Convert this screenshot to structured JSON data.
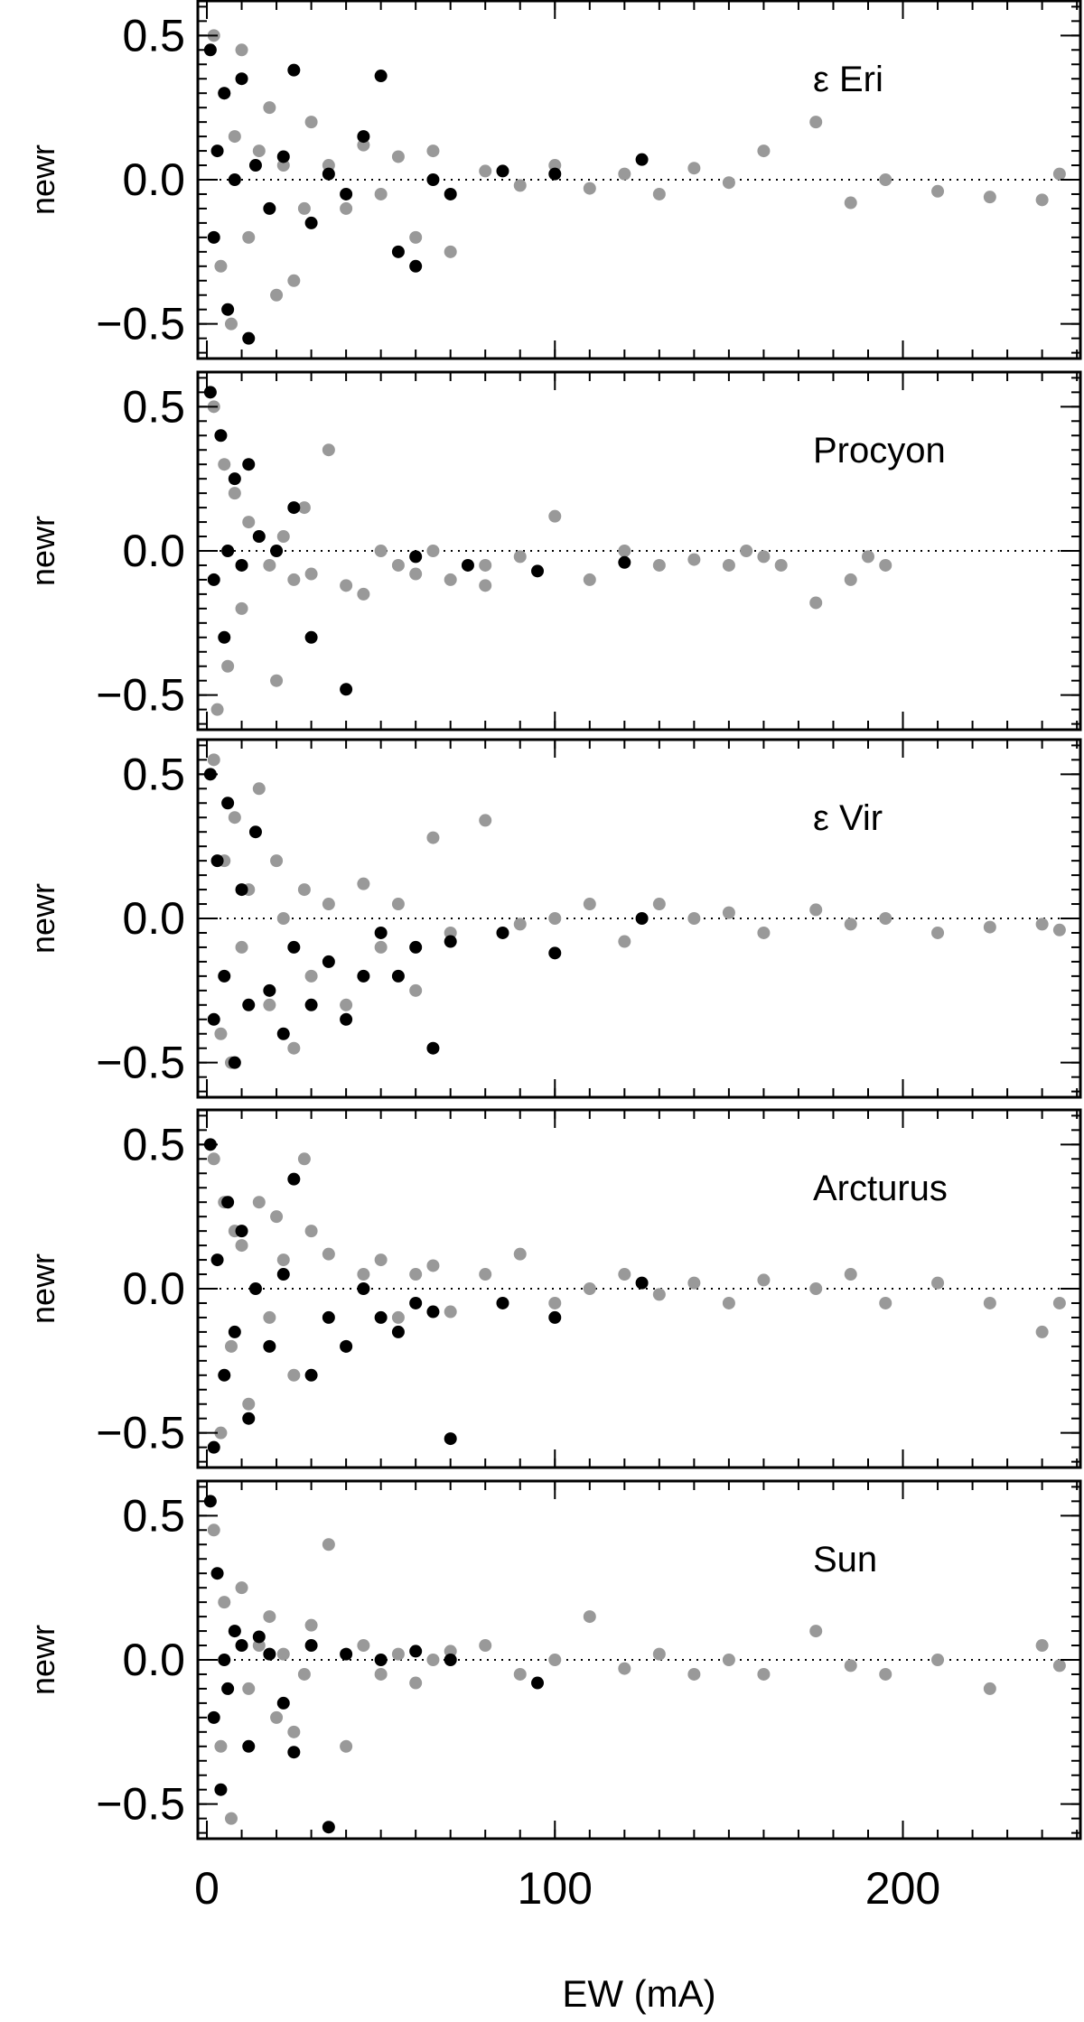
{
  "chart_data": [
    {
      "type": "scatter",
      "annotation": "ε Eri",
      "ylabel": "newr",
      "xlim": [
        -2.6,
        251
      ],
      "ylim": [
        -0.62,
        0.62
      ],
      "yticks": [
        {
          "value": -0.5,
          "label": "−0.5"
        },
        {
          "value": 0,
          "label": "0.0"
        },
        {
          "value": 0.5,
          "label": "0.5"
        }
      ],
      "minor_xtick_step": 10,
      "minor_ytick_step": 0.05,
      "hline": 0,
      "series": [
        {
          "color": "#999999",
          "x": [
            2,
            4,
            5,
            7,
            8,
            10,
            12,
            15,
            18,
            20,
            22,
            25,
            28,
            30,
            35,
            40,
            45,
            50,
            55,
            60,
            65,
            70,
            80,
            90,
            100,
            110,
            120,
            130,
            140,
            150,
            160,
            175,
            185,
            195,
            210,
            225,
            240,
            245
          ],
          "values": [
            0.5,
            -0.3,
            0.3,
            -0.5,
            0.15,
            0.45,
            -0.2,
            0.1,
            0.25,
            -0.4,
            0.05,
            -0.35,
            -0.1,
            0.2,
            0.05,
            -0.1,
            0.12,
            -0.05,
            0.08,
            -0.2,
            0.1,
            -0.25,
            0.03,
            -0.02,
            0.05,
            -0.03,
            0.02,
            -0.05,
            0.04,
            -0.01,
            0.1,
            0.2,
            -0.08,
            0.0,
            -0.04,
            -0.06,
            -0.07,
            0.02
          ]
        },
        {
          "color": "#000000",
          "x": [
            1,
            2,
            3,
            5,
            6,
            8,
            10,
            12,
            14,
            18,
            22,
            25,
            30,
            35,
            40,
            45,
            50,
            55,
            60,
            65,
            70,
            85,
            100,
            125
          ],
          "values": [
            0.45,
            -0.2,
            0.1,
            0.3,
            -0.45,
            0.0,
            0.35,
            -0.55,
            0.05,
            -0.1,
            0.08,
            0.38,
            -0.15,
            0.02,
            -0.05,
            0.15,
            0.36,
            -0.25,
            -0.3,
            0.0,
            -0.05,
            0.03,
            0.02,
            0.07
          ]
        }
      ]
    },
    {
      "type": "scatter",
      "annotation": "Procyon",
      "ylabel": "newr",
      "xlim": [
        -2.6,
        251
      ],
      "ylim": [
        -0.62,
        0.62
      ],
      "yticks": [
        {
          "value": -0.5,
          "label": "−0.5"
        },
        {
          "value": 0,
          "label": "0.0"
        },
        {
          "value": 0.5,
          "label": "0.5"
        }
      ],
      "minor_xtick_step": 10,
      "minor_ytick_step": 0.05,
      "hline": 0,
      "series": [
        {
          "color": "#999999",
          "x": [
            2,
            3,
            5,
            6,
            8,
            10,
            12,
            15,
            18,
            20,
            22,
            25,
            28,
            30,
            35,
            40,
            45,
            50,
            55,
            60,
            65,
            70,
            80,
            90,
            100,
            110,
            120,
            130,
            140,
            150,
            155,
            160,
            165,
            175,
            185,
            190,
            195,
            80
          ],
          "values": [
            0.5,
            -0.55,
            0.3,
            -0.4,
            0.2,
            -0.2,
            0.1,
            0.05,
            -0.05,
            -0.45,
            0.05,
            -0.1,
            0.15,
            -0.08,
            0.35,
            -0.12,
            -0.15,
            0.0,
            -0.05,
            -0.08,
            0.0,
            -0.1,
            -0.05,
            -0.02,
            0.12,
            -0.1,
            0.0,
            -0.05,
            -0.03,
            -0.05,
            0.0,
            -0.02,
            -0.05,
            -0.18,
            -0.1,
            -0.02,
            -0.05,
            -0.12
          ]
        },
        {
          "color": "#000000",
          "x": [
            1,
            2,
            4,
            5,
            6,
            8,
            10,
            12,
            15,
            20,
            25,
            30,
            40,
            60,
            75,
            95,
            120
          ],
          "values": [
            0.55,
            -0.1,
            0.4,
            -0.3,
            0.0,
            0.25,
            -0.05,
            0.3,
            0.05,
            0.0,
            0.15,
            -0.3,
            -0.48,
            -0.02,
            -0.05,
            -0.07,
            -0.04
          ]
        }
      ]
    },
    {
      "type": "scatter",
      "annotation": "ε Vir",
      "ylabel": "newr",
      "xlim": [
        -2.6,
        251
      ],
      "ylim": [
        -0.62,
        0.62
      ],
      "yticks": [
        {
          "value": -0.5,
          "label": "−0.5"
        },
        {
          "value": 0,
          "label": "0.0"
        },
        {
          "value": 0.5,
          "label": "0.5"
        }
      ],
      "minor_xtick_step": 10,
      "minor_ytick_step": 0.05,
      "hline": 0,
      "series": [
        {
          "color": "#999999",
          "x": [
            2,
            4,
            5,
            7,
            8,
            10,
            12,
            15,
            18,
            20,
            22,
            25,
            28,
            30,
            35,
            40,
            45,
            50,
            55,
            60,
            65,
            70,
            80,
            90,
            100,
            110,
            120,
            130,
            140,
            150,
            160,
            175,
            185,
            195,
            210,
            225,
            240,
            245
          ],
          "values": [
            0.55,
            -0.4,
            0.2,
            -0.5,
            0.35,
            -0.1,
            0.1,
            0.45,
            -0.3,
            0.2,
            0.0,
            -0.45,
            0.1,
            -0.2,
            0.05,
            -0.3,
            0.12,
            -0.1,
            0.05,
            -0.25,
            0.28,
            -0.05,
            0.34,
            -0.02,
            0.0,
            0.05,
            -0.08,
            0.05,
            0.0,
            0.02,
            -0.05,
            0.03,
            -0.02,
            0.0,
            -0.05,
            -0.03,
            -0.02,
            -0.04
          ]
        },
        {
          "color": "#000000",
          "x": [
            1,
            2,
            3,
            5,
            6,
            8,
            10,
            12,
            14,
            18,
            22,
            25,
            30,
            35,
            40,
            45,
            50,
            55,
            60,
            65,
            70,
            85,
            100,
            125
          ],
          "values": [
            0.5,
            -0.35,
            0.2,
            -0.2,
            0.4,
            -0.5,
            0.1,
            -0.3,
            0.3,
            -0.25,
            -0.4,
            -0.1,
            -0.3,
            -0.15,
            -0.35,
            -0.2,
            -0.05,
            -0.2,
            -0.1,
            -0.45,
            -0.08,
            -0.05,
            -0.12,
            0.0
          ]
        }
      ]
    },
    {
      "type": "scatter",
      "annotation": "Arcturus",
      "ylabel": "newr",
      "xlim": [
        -2.6,
        251
      ],
      "ylim": [
        -0.62,
        0.62
      ],
      "yticks": [
        {
          "value": -0.5,
          "label": "−0.5"
        },
        {
          "value": 0,
          "label": "0.0"
        },
        {
          "value": 0.5,
          "label": "0.5"
        }
      ],
      "minor_xtick_step": 10,
      "minor_ytick_step": 0.05,
      "hline": 0,
      "series": [
        {
          "color": "#999999",
          "x": [
            2,
            4,
            5,
            7,
            8,
            10,
            12,
            15,
            18,
            20,
            22,
            25,
            28,
            30,
            35,
            40,
            45,
            50,
            55,
            60,
            65,
            70,
            80,
            90,
            100,
            110,
            120,
            130,
            140,
            150,
            160,
            175,
            185,
            195,
            210,
            225,
            240,
            245
          ],
          "values": [
            0.45,
            -0.5,
            0.3,
            -0.2,
            0.2,
            0.15,
            -0.4,
            0.3,
            -0.1,
            0.25,
            0.1,
            -0.3,
            0.45,
            0.2,
            0.12,
            -0.2,
            0.05,
            0.1,
            -0.1,
            0.05,
            0.08,
            -0.08,
            0.05,
            0.12,
            -0.05,
            0.0,
            0.05,
            -0.02,
            0.02,
            -0.05,
            0.03,
            0.0,
            0.05,
            -0.05,
            0.02,
            -0.05,
            -0.15,
            -0.05
          ]
        },
        {
          "color": "#000000",
          "x": [
            1,
            2,
            3,
            5,
            6,
            8,
            10,
            12,
            14,
            18,
            22,
            25,
            30,
            35,
            40,
            45,
            50,
            55,
            60,
            65,
            70,
            85,
            100,
            125
          ],
          "values": [
            0.5,
            -0.55,
            0.1,
            -0.3,
            0.3,
            -0.15,
            0.2,
            -0.45,
            0.0,
            -0.2,
            0.05,
            0.38,
            -0.3,
            -0.1,
            -0.2,
            0.0,
            -0.1,
            -0.15,
            -0.05,
            -0.08,
            -0.52,
            -0.05,
            -0.1,
            0.02
          ]
        }
      ]
    },
    {
      "type": "scatter",
      "annotation": "Sun",
      "ylabel": "newr",
      "xlabel": "EW (mA)",
      "xlim": [
        -2.6,
        251
      ],
      "ylim": [
        -0.62,
        0.62
      ],
      "xticks": [
        0,
        100,
        200
      ],
      "yticks": [
        {
          "value": -0.5,
          "label": "−0.5"
        },
        {
          "value": 0,
          "label": "0.0"
        },
        {
          "value": 0.5,
          "label": "0.5"
        }
      ],
      "minor_xtick_step": 10,
      "minor_ytick_step": 0.05,
      "hline": 0,
      "series": [
        {
          "color": "#999999",
          "x": [
            2,
            4,
            5,
            7,
            8,
            10,
            12,
            15,
            18,
            20,
            22,
            25,
            28,
            30,
            35,
            40,
            45,
            50,
            55,
            60,
            65,
            70,
            80,
            90,
            100,
            110,
            120,
            130,
            140,
            150,
            160,
            175,
            185,
            195,
            210,
            225,
            240,
            245
          ],
          "values": [
            0.45,
            -0.3,
            0.2,
            -0.55,
            0.1,
            0.25,
            -0.1,
            0.05,
            0.15,
            -0.2,
            0.02,
            -0.25,
            -0.05,
            0.12,
            0.4,
            -0.3,
            0.05,
            -0.05,
            0.02,
            -0.08,
            0.0,
            0.03,
            0.05,
            -0.05,
            0.0,
            0.15,
            -0.03,
            0.02,
            -0.05,
            0.0,
            -0.05,
            0.1,
            -0.02,
            -0.05,
            0.0,
            -0.1,
            0.05,
            -0.02
          ]
        },
        {
          "color": "#000000",
          "x": [
            1,
            2,
            3,
            4,
            5,
            6,
            8,
            10,
            12,
            15,
            18,
            22,
            25,
            30,
            35,
            40,
            50,
            60,
            70,
            95
          ],
          "values": [
            0.55,
            -0.2,
            0.3,
            -0.45,
            0.0,
            -0.1,
            0.1,
            0.05,
            -0.3,
            0.08,
            0.02,
            -0.15,
            -0.32,
            0.05,
            -0.58,
            0.02,
            0.0,
            0.03,
            0.0,
            -0.08
          ]
        }
      ]
    }
  ]
}
